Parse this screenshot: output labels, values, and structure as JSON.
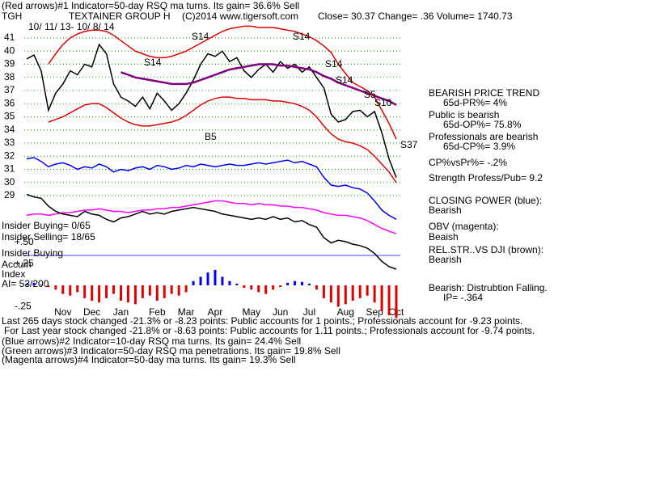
{
  "header": {
    "indicator1": "(Red arrows)#1 Indicator=50-day RSQ ma turns.  Its gain= 36.6% Sell",
    "ticker": "TGH",
    "company": "TEXTAINER GROUP H",
    "copyright": "(C)2014 www.tigersoft.com",
    "quote": "Close=  30.37  Change= .36 Volume= 1740.73",
    "dates": "10/ 11/ 13- 10/ 8/ 14"
  },
  "panel_labels": [
    "Insider Buying= 0/65",
    "Insider Selling= 18/65",
    "Insider Buying",
    "Accum",
    "Index",
    "AI= 53/200"
  ],
  "side_notes": [
    "BEARISH PRICE TREND",
    "65d-PR%= 4%",
    "Public is bearish",
    "65d-OP%= 75.8%",
    "Professionals are bearish",
    "65d-CP%= 3.9%",
    "CP%vsPr%= -.2%",
    "Strength Profess/Pub= 9.2",
    "CLOSING POWER (blue):",
    "Bearish",
    "OBV (magenta):",
    "Beaish",
    "REL.STR..VS DJI (brown):",
    "Bearish",
    "Bearish: Distrubtion Falling.",
    "IP= -.364"
  ],
  "footer": [
    "Last 265 days stock changed -21.3% or -8.23 points:  Public accounts for  1 points.;  Professionals account for -9.23 points.",
    "For Last year stock changed -21.8% or -8.63 points:  Public accounts for  1.11 points.;  Professionals account for -9.74 points.",
    "(Blue arrows)#2 Indicator=10-day RSQ ma turns. Its gain= 24.4% Sell",
    "(Green arrows)#3 Indicator=50-day RSQ ma penetrations. Its gain= 19.8% Sell",
    "(Magenta arrows)#4 Indicator=50-day ma turns. Its gain= 19.3% Sell"
  ],
  "chart_data": [
    {
      "type": "line",
      "categories": [
        null,
        null,
        null,
        null,
        null,
        "Nov",
        null,
        null,
        null,
        "Dec",
        null,
        null,
        null,
        "Jan",
        null,
        null,
        null,
        null,
        "Feb",
        null,
        null,
        null,
        "Mar",
        null,
        null,
        null,
        "Apr",
        null,
        null,
        null,
        null,
        "May",
        null,
        null,
        null,
        "Jun",
        null,
        null,
        null,
        "Jul",
        null,
        null,
        null,
        null,
        "Aug",
        null,
        null,
        null,
        "Sep",
        null,
        null,
        "Oct"
      ],
      "ylim": [
        23,
        42
      ],
      "yticks": [
        29,
        30,
        31,
        32,
        33,
        34,
        35,
        36,
        37,
        38,
        39,
        40,
        41
      ],
      "grid": true,
      "grid_color": "#00a000",
      "annotations": [
        "S14",
        "S14",
        "S14",
        "S14",
        "S14",
        "B5",
        "S5",
        "S10",
        "S37"
      ],
      "series": [
        {
          "color": "#000000",
          "values": [
            39.4,
            39.7,
            38.5,
            35.5,
            36.8,
            37.5,
            38.5,
            38.2,
            39.0,
            38.8,
            40.5,
            39.8,
            37.5,
            36.5,
            36.2,
            35.8,
            36.5,
            35.6,
            36.8,
            36.2,
            35.5,
            36.0,
            36.8,
            37.8,
            39.0,
            39.8,
            39.6,
            40.0,
            39.2,
            39.5,
            38.5,
            38.0,
            38.6,
            39.0,
            38.4,
            39.2,
            38.7,
            39.0,
            38.4,
            38.8,
            38.0,
            37.2,
            35.2,
            34.6,
            34.8,
            35.4,
            35.5,
            35.0,
            35.4,
            33.8,
            31.8,
            30.37
          ]
        },
        {
          "color": "#800080",
          "values": [
            null,
            null,
            null,
            null,
            null,
            null,
            null,
            null,
            null,
            null,
            null,
            null,
            null,
            38.4,
            38.2,
            38.0,
            37.9,
            37.8,
            37.7,
            37.6,
            37.5,
            37.5,
            37.5,
            37.6,
            37.8,
            38.0,
            38.2,
            38.4,
            38.6,
            38.7,
            38.8,
            38.9,
            39.0,
            39.0,
            39.0,
            38.9,
            38.9,
            38.8,
            38.7,
            38.6,
            38.4,
            38.1,
            37.9,
            37.6,
            37.4,
            37.2,
            37.0,
            36.8,
            36.6,
            36.4,
            36.2,
            35.9
          ]
        },
        {
          "color": "#e00000",
          "values": [
            null,
            null,
            null,
            39.0,
            39.8,
            40.5,
            41.0,
            41.3,
            41.5,
            41.6,
            41.6,
            41.5,
            41.2,
            40.8,
            40.4,
            40.0,
            39.8,
            39.6,
            39.5,
            39.5,
            39.6,
            39.8,
            40.0,
            40.3,
            40.6,
            40.9,
            41.2,
            41.5,
            41.7,
            41.8,
            41.9,
            41.9,
            41.8,
            41.8,
            41.8,
            41.7,
            41.6,
            41.5,
            41.3,
            41.1,
            40.8,
            40.4,
            39.9,
            39.0,
            38.3,
            37.6,
            37.3,
            37.0,
            36.5,
            35.5,
            34.5,
            33.3
          ]
        },
        {
          "color": "#e00000",
          "values": [
            null,
            null,
            null,
            34.6,
            34.8,
            35.0,
            35.3,
            35.6,
            35.9,
            36.0,
            36.0,
            35.7,
            35.3,
            34.9,
            34.6,
            34.4,
            34.3,
            34.3,
            34.4,
            34.5,
            34.6,
            34.8,
            35.1,
            35.5,
            35.9,
            36.2,
            36.4,
            36.5,
            36.5,
            36.4,
            36.4,
            36.3,
            36.3,
            36.3,
            36.2,
            36.2,
            36.1,
            36.0,
            35.8,
            35.5,
            35.0,
            34.3,
            33.7,
            33.3,
            33.1,
            33.0,
            32.8,
            32.5,
            32.0,
            31.4,
            30.8,
            30.0
          ]
        },
        {
          "color": "#0000ff",
          "values": [
            31.8,
            31.9,
            31.6,
            31.2,
            31.4,
            31.5,
            31.3,
            31.0,
            31.2,
            31.1,
            31.4,
            31.2,
            30.8,
            31.0,
            30.9,
            31.1,
            31.2,
            31.0,
            31.3,
            31.2,
            31.0,
            31.1,
            31.3,
            31.2,
            31.4,
            31.3,
            31.2,
            31.3,
            31.4,
            31.3,
            31.3,
            31.4,
            31.5,
            31.4,
            31.5,
            31.6,
            31.7,
            31.5,
            31.6,
            31.4,
            31.2,
            30.4,
            29.8,
            29.7,
            29.8,
            29.6,
            29.5,
            29.2,
            28.6,
            27.9,
            27.5,
            27.2
          ]
        },
        {
          "color": "#ff00ff",
          "values": [
            27.5,
            27.6,
            27.6,
            27.5,
            27.6,
            27.7,
            27.7,
            27.8,
            27.9,
            27.9,
            28.0,
            27.9,
            27.8,
            27.8,
            27.7,
            27.8,
            27.9,
            27.9,
            28.0,
            28.0,
            28.1,
            28.1,
            28.2,
            28.3,
            28.4,
            28.5,
            28.6,
            28.6,
            28.5,
            28.4,
            28.4,
            28.3,
            28.4,
            28.3,
            28.3,
            28.2,
            28.2,
            28.1,
            28.1,
            28.0,
            27.9,
            27.7,
            27.6,
            27.5,
            27.5,
            27.4,
            27.3,
            27.1,
            26.8,
            26.5,
            26.3,
            26.1
          ]
        },
        {
          "color": "#000000",
          "values": [
            29.1,
            28.9,
            28.8,
            28.2,
            27.8,
            27.6,
            27.5,
            27.4,
            27.8,
            27.6,
            27.5,
            27.2,
            27.0,
            27.3,
            27.4,
            27.6,
            27.8,
            27.6,
            27.7,
            27.6,
            27.8,
            27.9,
            28.0,
            28.1,
            28.0,
            27.9,
            27.8,
            27.6,
            27.5,
            27.4,
            27.3,
            27.2,
            27.3,
            27.2,
            27.4,
            27.2,
            27.3,
            27.0,
            27.1,
            26.8,
            26.6,
            25.8,
            25.4,
            25.6,
            25.5,
            25.3,
            25.2,
            25.0,
            24.6,
            24.0,
            23.6,
            23.4
          ]
        }
      ]
    },
    {
      "type": "bar",
      "ylim": [
        -0.4,
        0.55
      ],
      "yticks": [
        {
          "value": 0.5,
          "label": "+.50"
        },
        {
          "value": 0.25,
          "label": "+.25"
        },
        {
          "value": -0.25,
          "label": "-.25"
        }
      ],
      "positive_color": "#0000ff",
      "negative_color": "#e00000",
      "values": [
        0.02,
        0.03,
        0.01,
        -0.02,
        -0.05,
        -0.1,
        -0.12,
        -0.08,
        -0.15,
        -0.18,
        -0.2,
        -0.15,
        -0.1,
        -0.18,
        -0.2,
        -0.22,
        -0.15,
        -0.12,
        -0.18,
        -0.15,
        -0.1,
        -0.12,
        -0.08,
        0.05,
        0.1,
        0.15,
        0.18,
        0.1,
        0.05,
        0.02,
        -0.03,
        -0.05,
        -0.08,
        -0.1,
        -0.05,
        -0.02,
        0.03,
        0.05,
        0.04,
        0.02,
        -0.05,
        -0.15,
        -0.2,
        -0.25,
        -0.22,
        -0.18,
        -0.15,
        -0.12,
        -0.2,
        -0.3,
        -0.35,
        -0.38
      ]
    }
  ]
}
